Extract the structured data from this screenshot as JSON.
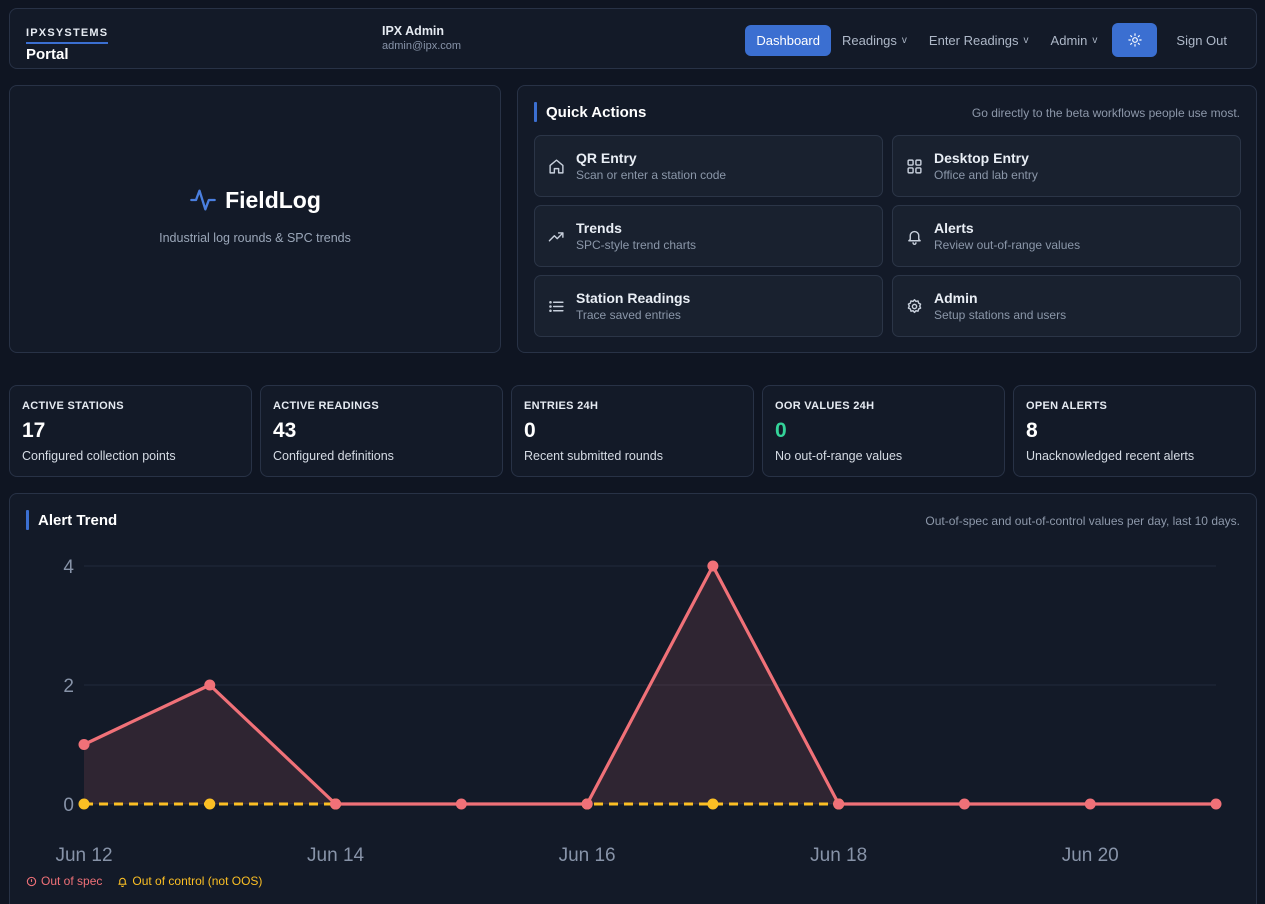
{
  "header": {
    "brand_top": "IPXSYSTEMS",
    "brand_bottom": "Portal",
    "user_name": "IPX Admin",
    "user_email": "admin@ipx.com",
    "nav": {
      "dashboard": "Dashboard",
      "readings": "Readings",
      "enter_readings": "Enter Readings",
      "admin": "Admin",
      "sign_out": "Sign Out",
      "chevron": "v",
      "theme_icon": "sun-icon"
    }
  },
  "hero": {
    "title": "FieldLog",
    "subtitle": "Industrial log rounds & SPC trends",
    "icon": "activity-pulse-icon"
  },
  "quick_actions": {
    "title": "Quick Actions",
    "note": "Go directly to the beta workflows people use most.",
    "items": [
      {
        "title": "QR Entry",
        "desc": "Scan or enter a station code",
        "icon": "home-icon"
      },
      {
        "title": "Desktop Entry",
        "desc": "Office and lab entry",
        "icon": "grid-icon"
      },
      {
        "title": "Trends",
        "desc": "SPC-style trend charts",
        "icon": "trending-up-icon"
      },
      {
        "title": "Alerts",
        "desc": "Review out-of-range values",
        "icon": "bell-icon"
      },
      {
        "title": "Station Readings",
        "desc": "Trace saved entries",
        "icon": "list-icon"
      },
      {
        "title": "Admin",
        "desc": "Setup stations and users",
        "icon": "gear-icon"
      }
    ]
  },
  "stats": [
    {
      "label": "ACTIVE STATIONS",
      "value": "17",
      "desc": "Configured collection points"
    },
    {
      "label": "ACTIVE READINGS",
      "value": "43",
      "desc": "Configured definitions"
    },
    {
      "label": "ENTRIES 24H",
      "value": "0",
      "desc": "Recent submitted rounds"
    },
    {
      "label": "OOR VALUES 24H",
      "value": "0",
      "desc": "No out-of-range values"
    },
    {
      "label": "OPEN ALERTS",
      "value": "8",
      "desc": "Unacknowledged recent alerts"
    }
  ],
  "colors": {
    "accent": "#3b6fd1",
    "out_of_spec": "#f07178",
    "out_of_control": "#fbbf24",
    "good": "#34d399"
  },
  "alert_trend": {
    "title": "Alert Trend",
    "note": "Out-of-spec and out-of-control values per day, last 10 days."
  },
  "chart_data": {
    "type": "line",
    "x": [
      "Jun 12",
      "Jun 13",
      "Jun 14",
      "Jun 15",
      "Jun 16",
      "Jun 17",
      "Jun 18",
      "Jun 19",
      "Jun 20",
      "Jun 21"
    ],
    "x_tick_labels": [
      "Jun 12",
      "Jun 14",
      "Jun 16",
      "Jun 18",
      "Jun 20"
    ],
    "y_ticks": [
      0,
      2,
      4
    ],
    "ylim": [
      0,
      4
    ],
    "grid": true,
    "legend_position": "bottom-left",
    "series": [
      {
        "name": "Out of spec",
        "values": [
          1,
          2,
          0,
          0,
          0,
          4,
          0,
          0,
          0,
          0
        ],
        "color": "#f07178",
        "style": "solid-area"
      },
      {
        "name": "Out of control (not OOS)",
        "values": [
          0,
          0,
          0,
          null,
          0,
          0,
          0,
          null,
          null,
          null
        ],
        "color": "#fbbf24",
        "style": "dashed"
      }
    ]
  }
}
